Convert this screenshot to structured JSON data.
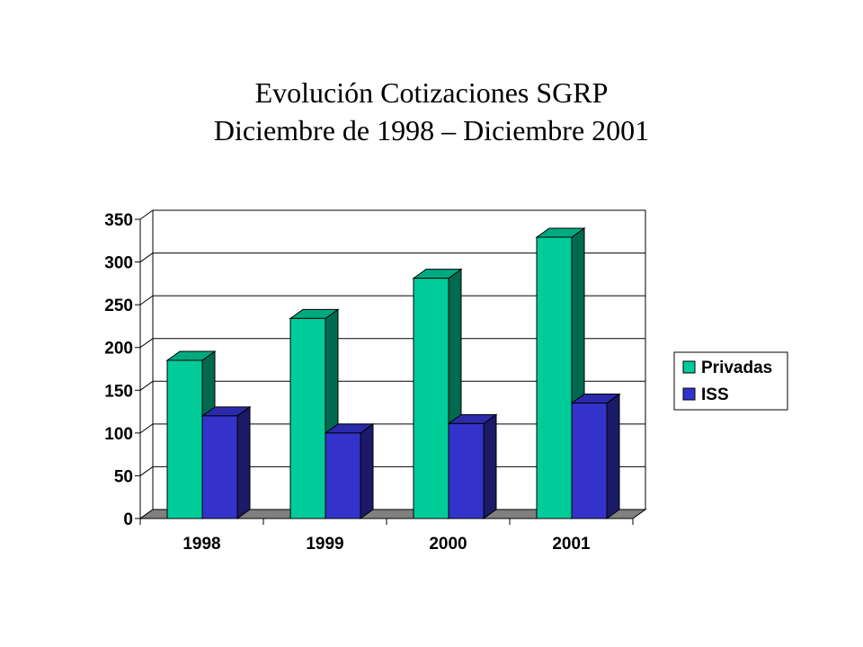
{
  "chart_data": {
    "type": "bar",
    "title_line1": "Evolución Cotizaciones SGRP",
    "title_line2": "Diciembre de 1998 – Diciembre 2001",
    "categories": [
      "1998",
      "1999",
      "2000",
      "2001"
    ],
    "series": [
      {
        "name": "Privadas",
        "values": [
          185,
          234,
          281,
          329
        ],
        "color": "#00CC99",
        "side_color": "#006A50",
        "top_color": "#00AA80"
      },
      {
        "name": "ISS",
        "values": [
          120,
          100,
          111,
          135
        ],
        "color": "#3333CC",
        "side_color": "#1A1A66",
        "top_color": "#2A2AAA"
      }
    ],
    "ylim": [
      0,
      350
    ],
    "yticks": [
      0,
      50,
      100,
      150,
      200,
      250,
      300,
      350
    ],
    "grid": true,
    "legend_position": "right",
    "floor_color": "#808080"
  }
}
